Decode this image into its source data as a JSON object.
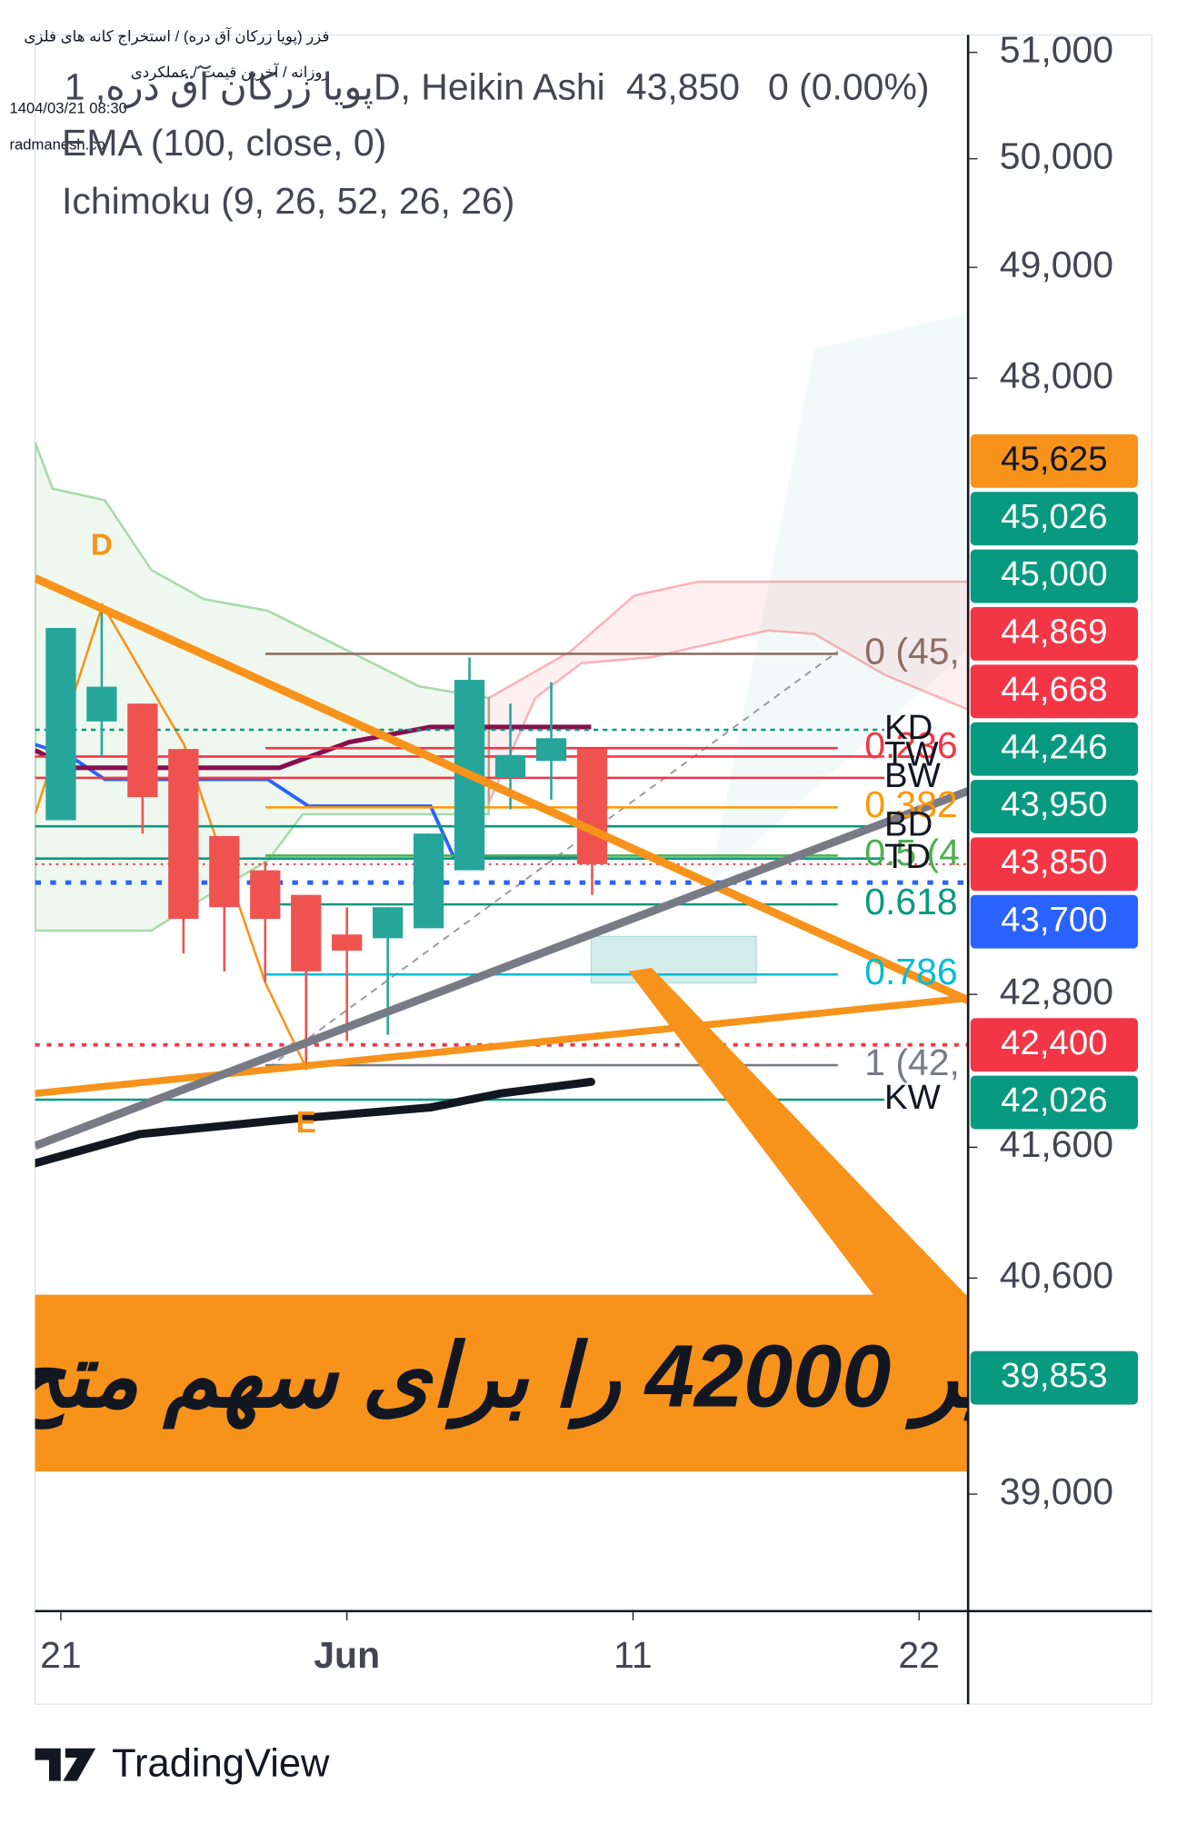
{
  "header": {
    "lines": [
      "فزر (پویا زرکان آق دره) / استخراج کانه های فلزی",
      "روزانه / آخرین قیمت / عملکردی",
      "1404/03/21 08:30",
      "radmanesh.co"
    ]
  },
  "brand": "TradingView",
  "chart_data": {
    "type": "candlestick",
    "title": "پویا زرکان آق دره, 1D, Heikin Ashi",
    "last_price": {
      "value": 43850,
      "label": "43,850"
    },
    "change": "0 (0.00%)",
    "indicators": [
      "EMA (100, close, 0)",
      "Ichimoku (9, 26, 52, 26, 26)"
    ],
    "log_scale": true,
    "up_color": "#26a69a",
    "down_color": "#ef5350",
    "candles": [
      {
        "open": 44210,
        "high": 45820,
        "low": 44210,
        "close": 45820
      },
      {
        "open": 45030,
        "high": 46017,
        "low": 44737,
        "close": 45322
      },
      {
        "open": 45180,
        "high": 45180,
        "low": 44100,
        "close": 44400
      },
      {
        "open": 44800,
        "high": 44800,
        "low": 43127,
        "close": 43406
      },
      {
        "open": 44080,
        "high": 44080,
        "low": 42984,
        "close": 43500
      },
      {
        "open": 43800,
        "high": 43870,
        "low": 42900,
        "close": 43406
      },
      {
        "open": 43600,
        "high": 43600,
        "low": 42203,
        "close": 42984
      },
      {
        "open": 43280,
        "high": 43500,
        "low": 42430,
        "close": 43150
      },
      {
        "open": 43250,
        "high": 43500,
        "low": 42480,
        "close": 43500
      },
      {
        "open": 43330,
        "high": 44100,
        "low": 43330,
        "close": 44100
      },
      {
        "open": 43800,
        "high": 45570,
        "low": 43800,
        "close": 45380
      },
      {
        "open": 44560,
        "high": 45180,
        "low": 44300,
        "close": 44750
      },
      {
        "open": 44700,
        "high": 45360,
        "low": 44380,
        "close": 44890
      },
      {
        "open": 44800,
        "high": 44800,
        "low": 43600,
        "close": 43850
      }
    ],
    "xlim": [
      -0.63,
      22.2
    ],
    "xticks": [
      {
        "value": 0,
        "label": "21"
      },
      {
        "value": 7,
        "label": "Jun"
      },
      {
        "value": 14,
        "label": "11"
      },
      {
        "value": 21,
        "label": "22"
      }
    ],
    "ylim": [
      38160,
      51166
    ],
    "yticks": [
      {
        "value": 51000,
        "label": "51,000"
      },
      {
        "value": 50000,
        "label": "50,000"
      },
      {
        "value": 49000,
        "label": "49,000"
      },
      {
        "value": 48000,
        "label": "48,000"
      },
      {
        "value": 42800,
        "label": "42,800"
      },
      {
        "value": 41600,
        "label": "41,600"
      },
      {
        "value": 40600,
        "label": "40,600"
      },
      {
        "value": 39000,
        "label": "39,000"
      }
    ],
    "price_tags": [
      {
        "value": 45625,
        "label": "45,625",
        "color": "#f7931a",
        "text_color": "#131722"
      },
      {
        "value": 45026,
        "label": "45,026",
        "color": "#089981",
        "text_color": "#ffffff"
      },
      {
        "value": 45000,
        "label": "45,000",
        "color": "#089981",
        "text_color": "#ffffff"
      },
      {
        "value": 44869,
        "label": "44,869",
        "color": "#f23645",
        "text_color": "#ffffff"
      },
      {
        "value": 44668,
        "label": "44,668",
        "color": "#f23645",
        "text_color": "#ffffff"
      },
      {
        "value": 44246,
        "label": "44,246",
        "color": "#089981",
        "text_color": "#ffffff"
      },
      {
        "value": 43950,
        "label": "43,950",
        "color": "#089981",
        "text_color": "#ffffff"
      },
      {
        "value": 43850,
        "label": "43,850",
        "color": "#f23645",
        "text_color": "#ffffff"
      },
      {
        "value": 43700,
        "label": "43,700",
        "color": "#2962ff",
        "text_color": "#ffffff"
      },
      {
        "value": 42400,
        "label": "42,400",
        "color": "#f23645",
        "text_color": "#ffffff"
      },
      {
        "value": 42026,
        "label": "42,026",
        "color": "#089981",
        "text_color": "#ffffff"
      },
      {
        "value": 39853,
        "label": "39,853",
        "color": "#089981",
        "text_color": "#ffffff"
      }
    ],
    "fib_levels": [
      {
        "label": "0 (45,",
        "value": 45600,
        "color": "#8d6e63"
      },
      {
        "label": "0.236",
        "value": 44807,
        "color": "#f23645"
      },
      {
        "label": "0.382",
        "value": 44316,
        "color": "#ff9800"
      },
      {
        "label": "0.5 (4",
        "value": 43920,
        "color": "#4caf50"
      },
      {
        "label": "0.618",
        "value": 43523,
        "color": "#089981"
      },
      {
        "label": "0.786",
        "value": 42959,
        "color": "#00bcd4"
      },
      {
        "label": "1 (42,",
        "value": 42240,
        "color": "#787b86"
      }
    ],
    "level_labels": [
      {
        "label": "KD",
        "value": 44960
      },
      {
        "label": "TW",
        "value": 44737
      },
      {
        "label": "BW",
        "value": 44560
      },
      {
        "label": "BD",
        "value": 44160
      },
      {
        "label": "TD",
        "value": 43896
      },
      {
        "label": "KW",
        "value": 41970
      }
    ],
    "points": [
      "D",
      "E"
    ],
    "banner": "یر 42000 را برای سهم متح"
  }
}
